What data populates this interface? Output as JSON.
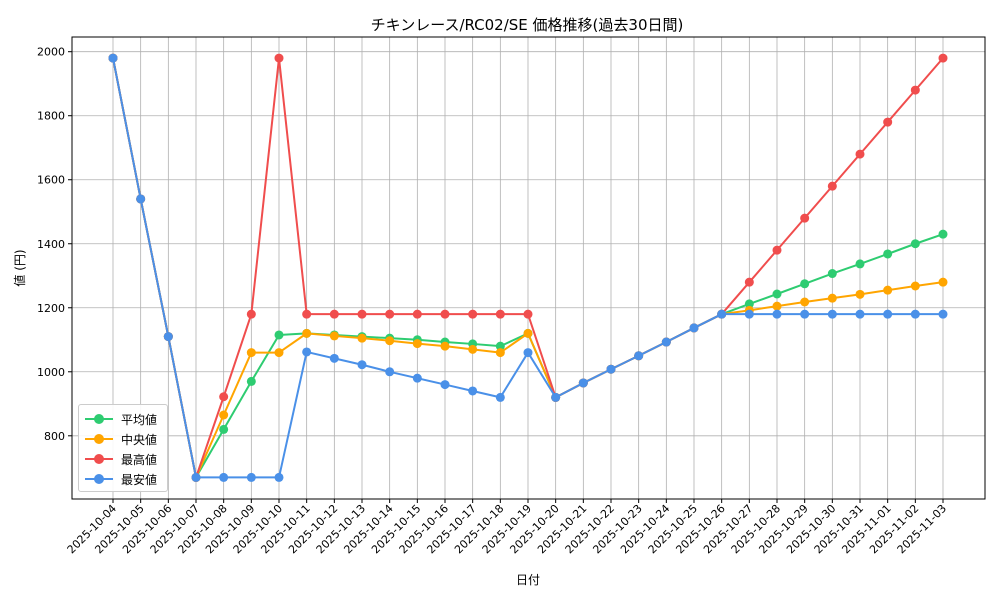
{
  "chart_data": {
    "type": "line",
    "title": "チキンレース/RC02/SE 価格推移(過去30日間)",
    "xlabel": "日付",
    "ylabel": "値 (円)",
    "ylim": [
      610,
      2020
    ],
    "yticks": [
      800,
      1000,
      1200,
      1400,
      1600,
      1800,
      2000
    ],
    "grid": true,
    "legend_position": "lower-left",
    "categories": [
      "2025-10-04",
      "2025-10-05",
      "2025-10-06",
      "2025-10-07",
      "2025-10-08",
      "2025-10-09",
      "2025-10-10",
      "2025-10-11",
      "2025-10-12",
      "2025-10-13",
      "2025-10-14",
      "2025-10-15",
      "2025-10-16",
      "2025-10-17",
      "2025-10-18",
      "2025-10-19",
      "2025-10-20",
      "2025-10-21",
      "2025-10-22",
      "2025-10-23",
      "2025-10-24",
      "2025-10-25",
      "2025-10-26",
      "2025-10-27",
      "2025-10-28",
      "2025-10-29",
      "2025-10-30",
      "2025-10-31",
      "2025-11-01",
      "2025-11-02",
      "2025-11-03"
    ],
    "series": [
      {
        "name": "平均値",
        "color": "#2ecc71",
        "values": [
          1980,
          1540,
          1110,
          670,
          820,
          970,
          1115,
          1120,
          1115,
          1110,
          1105,
          1100,
          1093,
          1087,
          1080,
          1120,
          920,
          965,
          1008,
          1050,
          1093,
          1137,
          1180,
          1212,
          1243,
          1275,
          1307,
          1337,
          1368,
          1400,
          1430
        ]
      },
      {
        "name": "中央値",
        "color": "#ffa500",
        "values": [
          1980,
          1540,
          1110,
          670,
          865,
          1060,
          1060,
          1120,
          1112,
          1105,
          1097,
          1088,
          1080,
          1070,
          1060,
          1120,
          920,
          965,
          1008,
          1050,
          1093,
          1137,
          1180,
          1192,
          1205,
          1218,
          1230,
          1242,
          1255,
          1268,
          1280
        ]
      },
      {
        "name": "最高値",
        "color": "#f04d4d",
        "values": [
          1980,
          1540,
          1110,
          670,
          922,
          1180,
          1980,
          1180,
          1180,
          1180,
          1180,
          1180,
          1180,
          1180,
          1180,
          1180,
          920,
          965,
          1008,
          1050,
          1093,
          1137,
          1180,
          1280,
          1380,
          1480,
          1580,
          1680,
          1780,
          1880,
          1980
        ]
      },
      {
        "name": "最安値",
        "color": "#4a90e8",
        "values": [
          1980,
          1540,
          1110,
          670,
          670,
          670,
          670,
          1062,
          1042,
          1022,
          1000,
          980,
          960,
          940,
          920,
          1060,
          920,
          965,
          1008,
          1050,
          1093,
          1137,
          1180,
          1180,
          1180,
          1180,
          1180,
          1180,
          1180,
          1180,
          1180
        ]
      }
    ]
  }
}
